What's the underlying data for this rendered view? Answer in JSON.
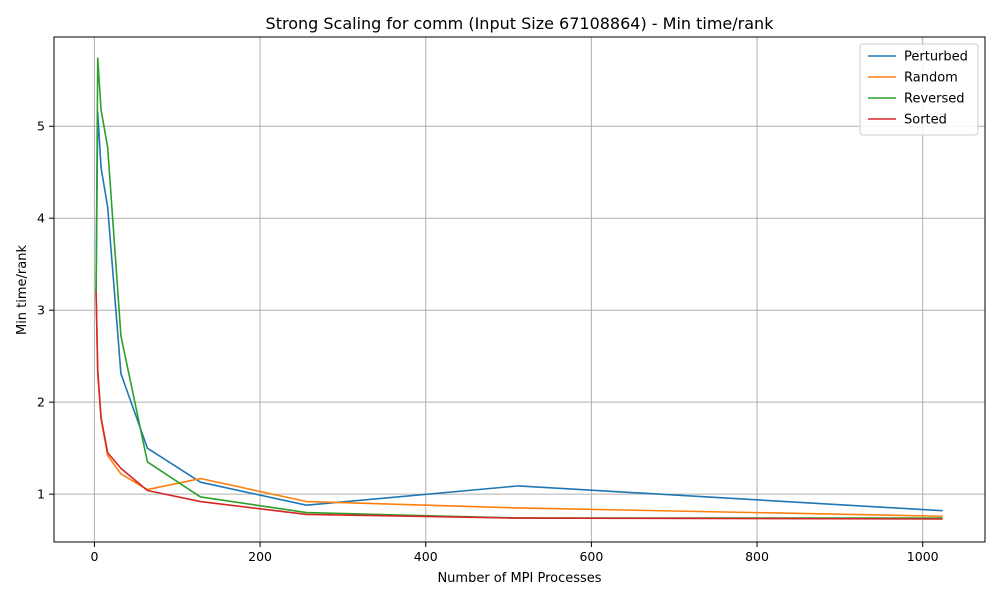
{
  "chart_data": {
    "type": "line",
    "title": "Strong Scaling for comm (Input Size 67108864) - Min time/rank",
    "xlabel": "Number of MPI Processes",
    "ylabel": "Min time/rank",
    "xlim": [
      -48.8,
      1075.2
    ],
    "ylim": [
      0.48,
      5.97
    ],
    "xticks": [
      0,
      200,
      400,
      600,
      800,
      1000
    ],
    "yticks": [
      1,
      2,
      3,
      4,
      5
    ],
    "grid": true,
    "legend_position": "top-right",
    "x": [
      2,
      4,
      8,
      16,
      32,
      64,
      128,
      256,
      512,
      1024
    ],
    "series": [
      {
        "name": "Perturbed",
        "color": "#1f77b4",
        "values": [
          3.2,
          5.15,
          4.55,
          4.12,
          2.31,
          1.5,
          1.13,
          0.88,
          1.09,
          0.82
        ]
      },
      {
        "name": "Random",
        "color": "#ff7f0e",
        "values": [
          3.2,
          2.3,
          1.82,
          1.42,
          1.22,
          1.05,
          1.17,
          0.92,
          0.85,
          0.76
        ]
      },
      {
        "name": "Reversed",
        "color": "#2ca02c",
        "values": [
          3.2,
          5.74,
          5.18,
          4.77,
          2.72,
          1.35,
          0.97,
          0.8,
          0.74,
          0.74
        ]
      },
      {
        "name": "Sorted",
        "color": "#d62728",
        "values": [
          3.2,
          2.35,
          1.83,
          1.45,
          1.28,
          1.04,
          0.92,
          0.78,
          0.74,
          0.73
        ]
      }
    ]
  }
}
